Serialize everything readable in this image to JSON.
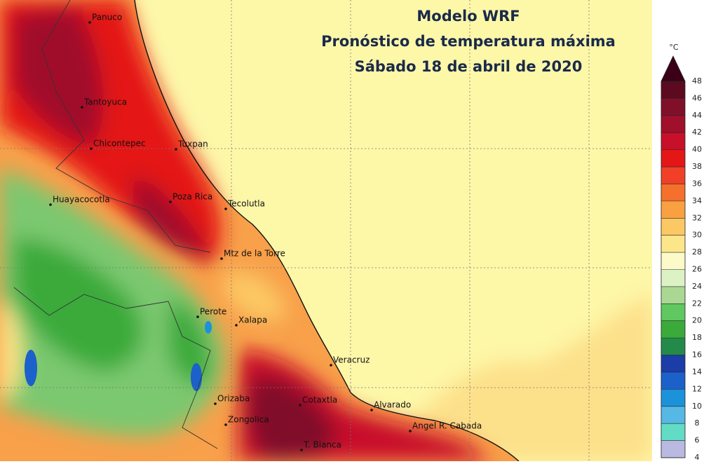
{
  "title": [
    "Modelo WRF",
    "Pronóstico de temperatura máxima",
    "Sábado 18 de abril de 2020"
  ],
  "places": [
    {
      "label": "Panuco"
    },
    {
      "label": "Tantoyuca"
    },
    {
      "label": "Chicontepec"
    },
    {
      "label": "Tuxpan"
    },
    {
      "label": "Huayacocotla"
    },
    {
      "label": "Poza Rica"
    },
    {
      "label": "Tecolutla"
    },
    {
      "label": "Mtz de la Torre"
    },
    {
      "label": "Perote"
    },
    {
      "label": "Xalapa"
    },
    {
      "label": "Veracruz"
    },
    {
      "label": "Orizaba"
    },
    {
      "label": "Cotaxtla"
    },
    {
      "label": "Alvarado"
    },
    {
      "label": "Zongolica"
    },
    {
      "label": "Angel R. Cabada"
    },
    {
      "label": "T. Bianca"
    }
  ],
  "colorbar": {
    "unit": "°C",
    "range": [
      4,
      48
    ],
    "ticks": [
      4,
      6,
      8,
      10,
      12,
      14,
      16,
      18,
      20,
      22,
      24,
      26,
      28,
      30,
      32,
      34,
      36,
      38,
      40,
      42,
      44,
      46,
      48
    ],
    "colors": [
      "#b9b9e2",
      "#62dcc4",
      "#56b8e4",
      "#1c92da",
      "#1c60ca",
      "#1c3ca8",
      "#238a4a",
      "#3aaa3a",
      "#60c860",
      "#aad892",
      "#dcf2c4",
      "#fbfac8",
      "#fde68a",
      "#fcc864",
      "#f9a040",
      "#f4702c",
      "#f04028",
      "#e41616",
      "#c8102a",
      "#a0102a",
      "#80102a",
      "#5c0a20"
    ],
    "extend_color": "#3a0018"
  }
}
